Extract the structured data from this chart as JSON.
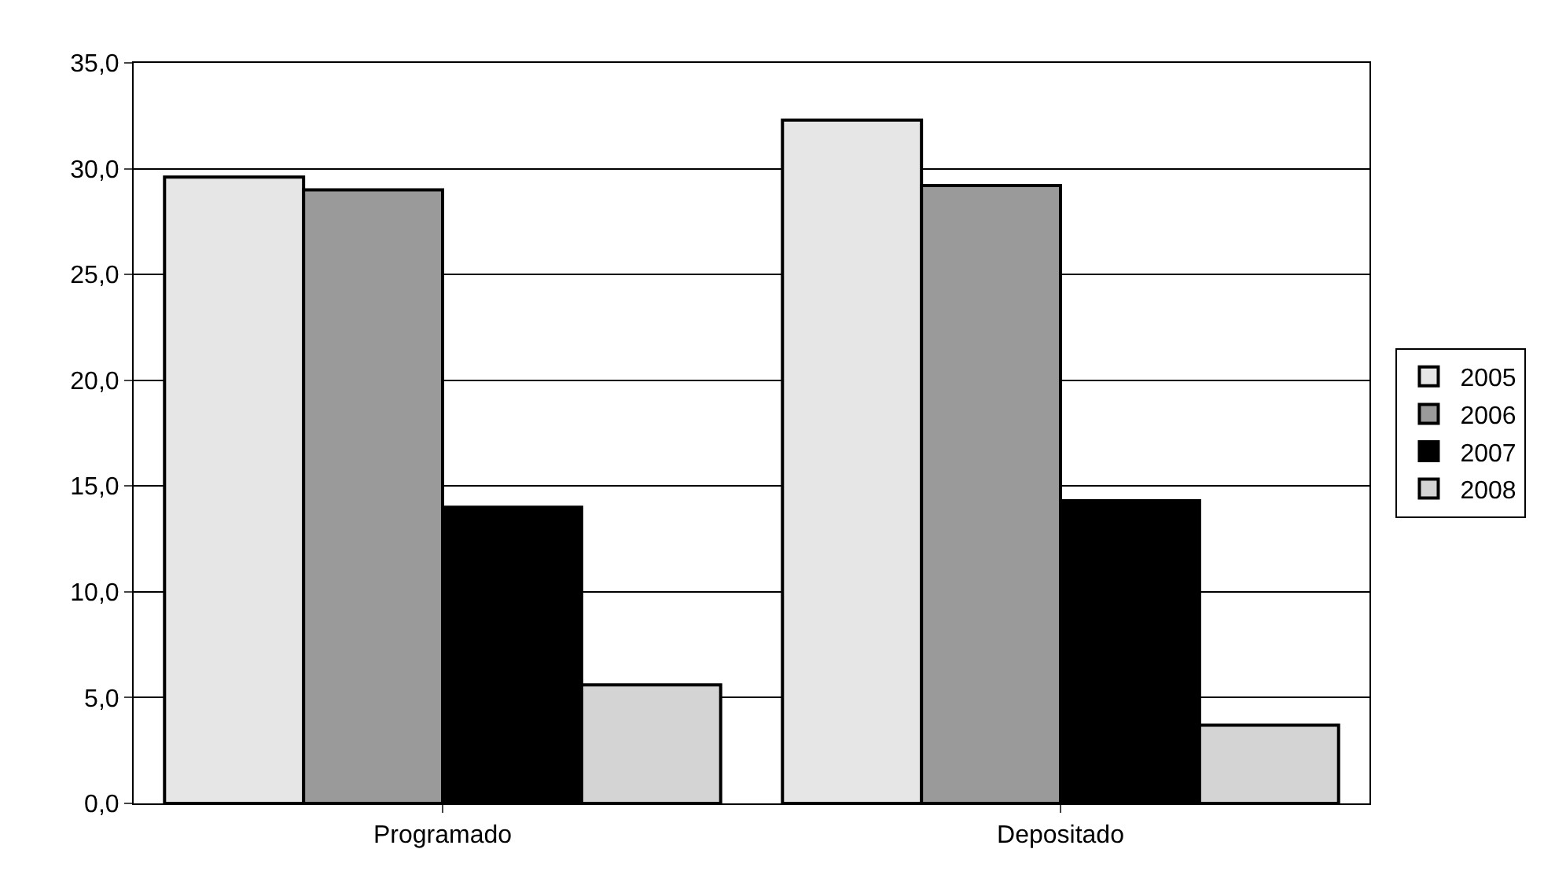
{
  "chart_data": {
    "type": "bar",
    "categories": [
      "Programado",
      "Depositado"
    ],
    "series": [
      {
        "name": "2005",
        "color": "#e6e6e6",
        "values": [
          29.6,
          32.3
        ]
      },
      {
        "name": "2006",
        "color": "#9a9a9a",
        "values": [
          29.0,
          29.2
        ]
      },
      {
        "name": "2007",
        "color": "#000000",
        "values": [
          14.0,
          14.3
        ]
      },
      {
        "name": "2008",
        "color": "#d4d4d4",
        "values": [
          5.6,
          3.7
        ]
      }
    ],
    "ylim": [
      0,
      35
    ],
    "yticks": [
      {
        "value": 0,
        "label": "0,0"
      },
      {
        "value": 5,
        "label": "5,0"
      },
      {
        "value": 10,
        "label": "10,0"
      },
      {
        "value": 15,
        "label": "15,0"
      },
      {
        "value": 20,
        "label": "20,0"
      },
      {
        "value": 25,
        "label": "25,0"
      },
      {
        "value": 30,
        "label": "30,0"
      },
      {
        "value": 35,
        "label": "35,0"
      }
    ],
    "grid": "y",
    "legend": "right"
  }
}
